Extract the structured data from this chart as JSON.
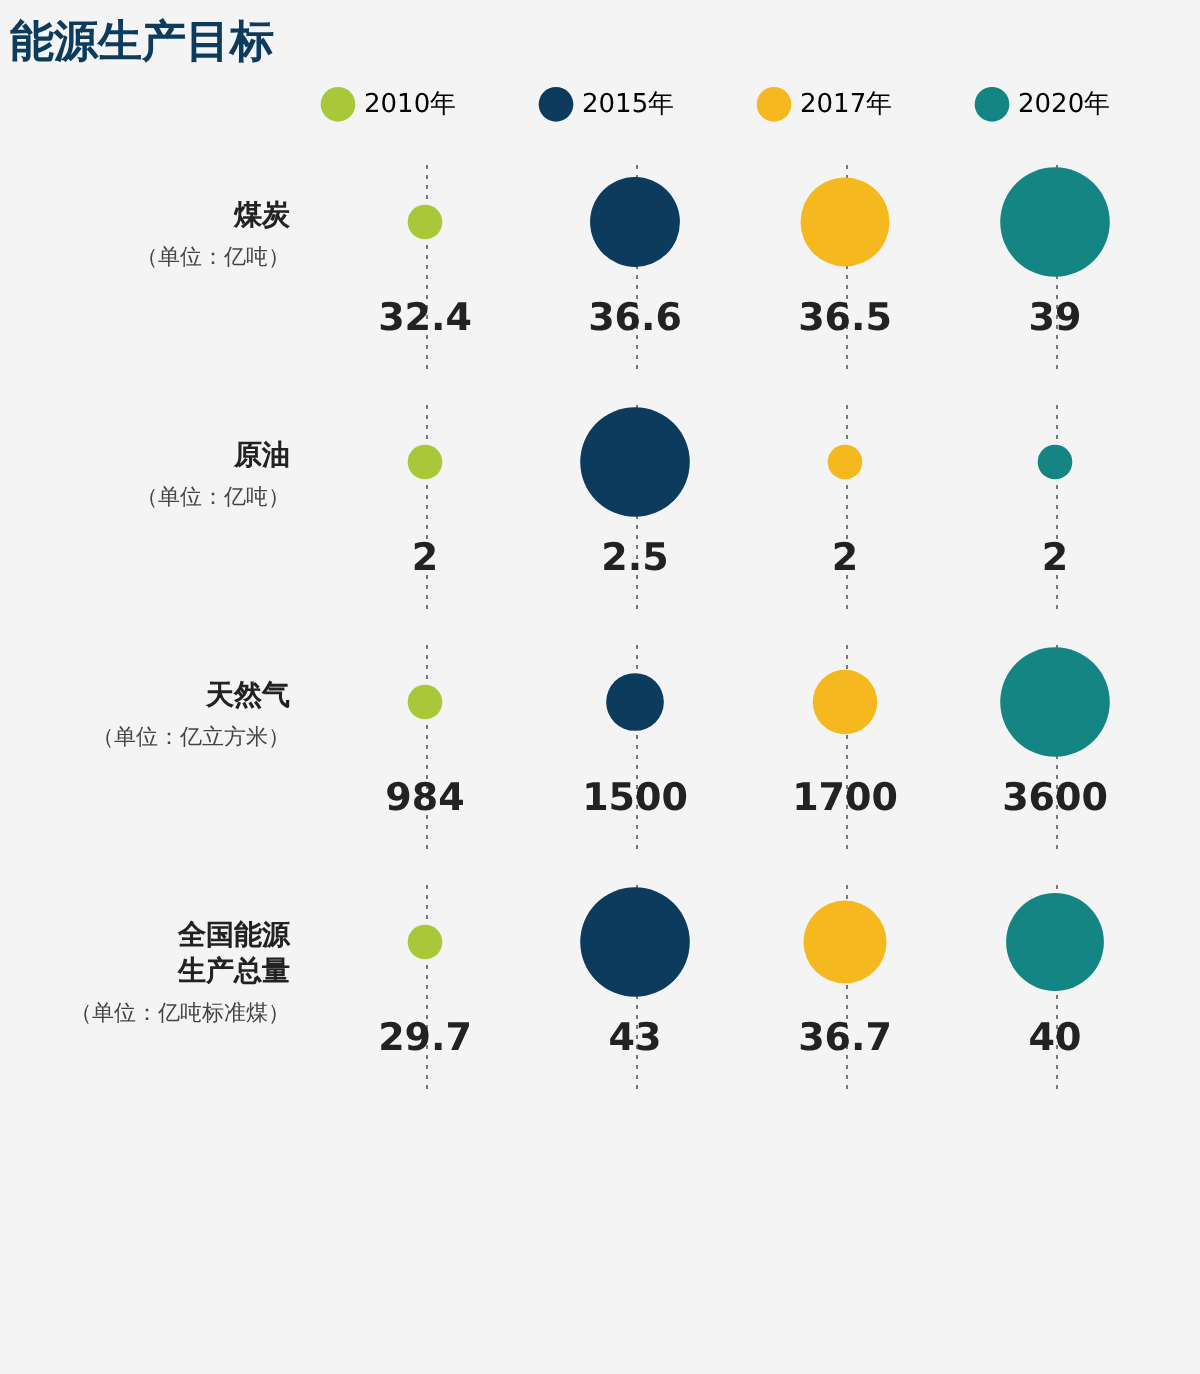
{
  "chart_data": {
    "type": "other",
    "title": "能源生产目标",
    "legend": "top",
    "data_labels": true,
    "categories": [
      "煤炭",
      "原油",
      "天然气",
      "全国能源生产总量"
    ],
    "annotations": [
      "（单位：亿吨）",
      "（单位：亿吨）",
      "（单位：亿立方米）",
      "（单位：亿吨标准煤）"
    ],
    "series": [
      {
        "name": "2010年",
        "color": "#a8c83a",
        "values": [
          32.4,
          2,
          984,
          29.7
        ]
      },
      {
        "name": "2015年",
        "color": "#0d3b5e",
        "values": [
          36.6,
          2.5,
          1500,
          43
        ]
      },
      {
        "name": "2017年",
        "color": "#f5b91f",
        "values": [
          36.5,
          2,
          1700,
          36.7
        ]
      },
      {
        "name": "2020年",
        "color": "#148582",
        "values": [
          39,
          2,
          3600,
          40
        ]
      }
    ]
  }
}
